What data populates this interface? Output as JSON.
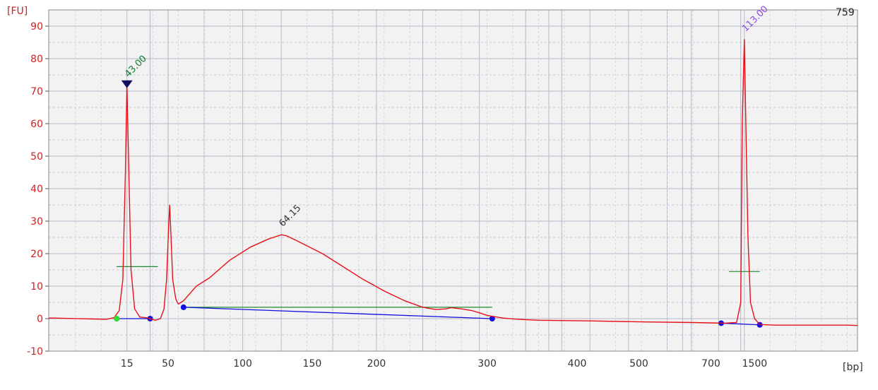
{
  "chart_data": {
    "type": "line",
    "y_unit": "[FU]",
    "x_unit": "[bp]",
    "sample_label": "759",
    "ylim": [
      -10,
      95
    ],
    "yticks": [
      -10,
      0,
      10,
      20,
      30,
      40,
      50,
      60,
      70,
      80,
      90
    ],
    "xticks": [
      "15",
      "50",
      "100",
      "150",
      "200",
      "300",
      "400",
      "500",
      "700",
      "1500"
    ],
    "grid": true,
    "colors": {
      "trace": "#e8101a",
      "axis_text": "#d81c1c",
      "grid": "#b6b6c8",
      "plot_bg": "#f2f2f2",
      "baseline": "#1010e0",
      "marker_lower": "#0e7a2e",
      "marker_upper": "#8a4be0",
      "peak_label": "#333333",
      "range_bar": "#1f8a2a",
      "green_dot": "#33dd33"
    },
    "series": [
      {
        "points": [
          [
            -0.52,
            0
          ],
          [
            -0.5,
            0.2
          ],
          [
            0.6,
            -0.2
          ],
          [
            0.75,
            0.3
          ],
          [
            0.85,
            2.5
          ],
          [
            0.92,
            12
          ],
          [
            0.97,
            45
          ],
          [
            1.0,
            72
          ],
          [
            1.03,
            50
          ],
          [
            1.08,
            15
          ],
          [
            1.15,
            3
          ],
          [
            1.25,
            0.5
          ],
          [
            1.4,
            0.2
          ],
          [
            1.55,
            -0.5
          ],
          [
            1.65,
            0
          ],
          [
            1.72,
            3
          ],
          [
            1.77,
            12
          ],
          [
            1.81,
            28
          ],
          [
            1.83,
            35
          ],
          [
            1.85,
            28
          ],
          [
            1.89,
            12
          ],
          [
            1.95,
            6
          ],
          [
            2.0,
            4.5
          ],
          [
            2.1,
            5.5
          ],
          [
            2.35,
            10
          ],
          [
            2.6,
            12.5
          ],
          [
            3.0,
            18
          ],
          [
            3.4,
            22
          ],
          [
            3.75,
            24.5
          ],
          [
            4.0,
            25.8
          ],
          [
            4.1,
            25.5
          ],
          [
            4.3,
            24
          ],
          [
            4.8,
            20
          ],
          [
            5.2,
            16
          ],
          [
            5.6,
            12
          ],
          [
            6.0,
            8.5
          ],
          [
            6.4,
            5.5
          ],
          [
            6.75,
            3.5
          ],
          [
            7.0,
            2.8
          ],
          [
            7.2,
            3
          ],
          [
            7.3,
            3.4
          ],
          [
            7.5,
            3
          ],
          [
            7.7,
            2.5
          ],
          [
            7.85,
            1.8
          ],
          [
            8.0,
            1
          ],
          [
            8.3,
            0.2
          ],
          [
            8.6,
            -0.2
          ],
          [
            9.0,
            -0.5
          ],
          [
            10.0,
            -0.7
          ],
          [
            11.0,
            -1
          ],
          [
            12.0,
            -1.2
          ],
          [
            12.6,
            -1.4
          ],
          [
            12.85,
            -1.2
          ],
          [
            12.93,
            5
          ],
          [
            12.96,
            60
          ],
          [
            13.0,
            86
          ],
          [
            13.03,
            60
          ],
          [
            13.07,
            25
          ],
          [
            13.12,
            5
          ],
          [
            13.2,
            0
          ],
          [
            13.3,
            -1.8
          ],
          [
            13.6,
            -2
          ],
          [
            14.0,
            -2
          ],
          [
            14.5,
            -2
          ],
          [
            15.0,
            -2
          ],
          [
            15.2,
            -2.1
          ]
        ]
      }
    ],
    "peak_labels": [
      {
        "text": "43.00",
        "x": 1.0,
        "y": 72,
        "role": "lower_marker"
      },
      {
        "text": "64.15",
        "x": 4.0,
        "y": 26,
        "role": "peak"
      },
      {
        "text": "113.00",
        "x": 13.0,
        "y": 86,
        "role": "upper_marker"
      }
    ],
    "baselines": [
      {
        "from": [
          0.8,
          0
        ],
        "to": [
          1.45,
          0
        ]
      },
      {
        "from": [
          2.1,
          3.5
        ],
        "to": [
          8.1,
          0
        ]
      },
      {
        "from": [
          12.55,
          -1.4
        ],
        "to": [
          13.3,
          -1.9
        ]
      }
    ],
    "green_markers": [
      {
        "x": 0.8,
        "y": 0
      }
    ],
    "height_bars": [
      {
        "from": [
          0.8,
          16
        ],
        "to": [
          1.6,
          16
        ]
      },
      {
        "from": [
          2.1,
          3.5
        ],
        "to": [
          8.1,
          3.5
        ]
      },
      {
        "from": [
          12.7,
          14.5
        ],
        "to": [
          13.3,
          14.5
        ]
      }
    ],
    "x_data_range": [
      -0.52,
      15.2
    ],
    "vertical_gridlines": [
      1.0,
      1.45,
      1.8,
      2.5,
      3.25,
      4.0,
      5.0,
      5.85,
      6.75,
      7.85,
      8.75,
      9.2,
      9.45,
      10.0,
      10.75,
      11.5,
      11.8,
      11.97,
      12.5,
      12.93,
      13.0
    ]
  }
}
